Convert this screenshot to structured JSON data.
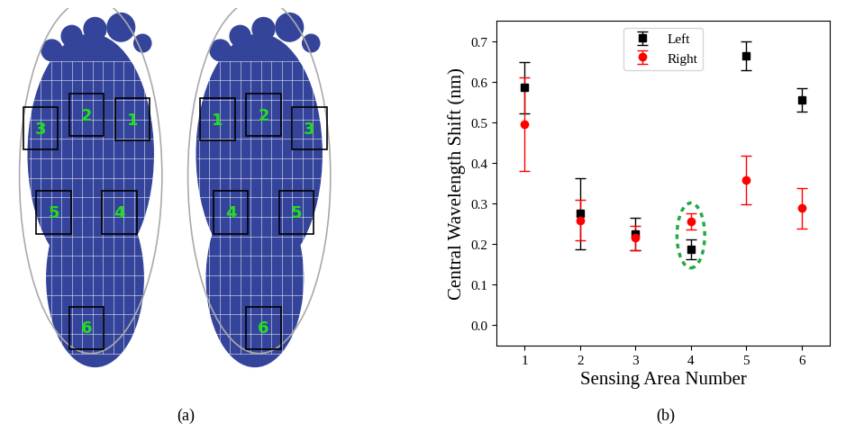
{
  "panel_labels": [
    "(a)",
    "(b)"
  ],
  "foot_diagram": {
    "left_foot_areas": [
      "1",
      "2",
      "3",
      "4",
      "5",
      "6"
    ],
    "right_foot_areas": [
      "1",
      "2",
      "3",
      "4",
      "5",
      "6"
    ]
  },
  "chart_data": {
    "type": "scatter",
    "x_label": "Sensing Area Number",
    "y_label": "Central Wavelength Shift (nm)",
    "x": [
      1,
      2,
      3,
      4,
      5,
      6
    ],
    "xlim": [
      0.5,
      6.5
    ],
    "xticks": [
      1,
      2,
      3,
      4,
      5,
      6
    ],
    "ylim": [
      -0.05,
      0.75
    ],
    "yticks": [
      0.0,
      0.1,
      0.2,
      0.3,
      0.4,
      0.5,
      0.6,
      0.7
    ],
    "legend": "upper center",
    "series": [
      {
        "name": "Left",
        "color": "#000000",
        "marker": "square",
        "values": [
          0.585,
          0.275,
          0.225,
          0.187,
          0.663,
          0.555
        ],
        "errors": [
          0.063,
          0.088,
          0.04,
          0.025,
          0.035,
          0.028
        ]
      },
      {
        "name": "Right",
        "color": "#ff0000",
        "marker": "circle",
        "values": [
          0.495,
          0.258,
          0.215,
          0.255,
          0.357,
          0.288
        ],
        "errors": [
          0.115,
          0.05,
          0.03,
          0.02,
          0.06,
          0.05
        ]
      }
    ]
  }
}
